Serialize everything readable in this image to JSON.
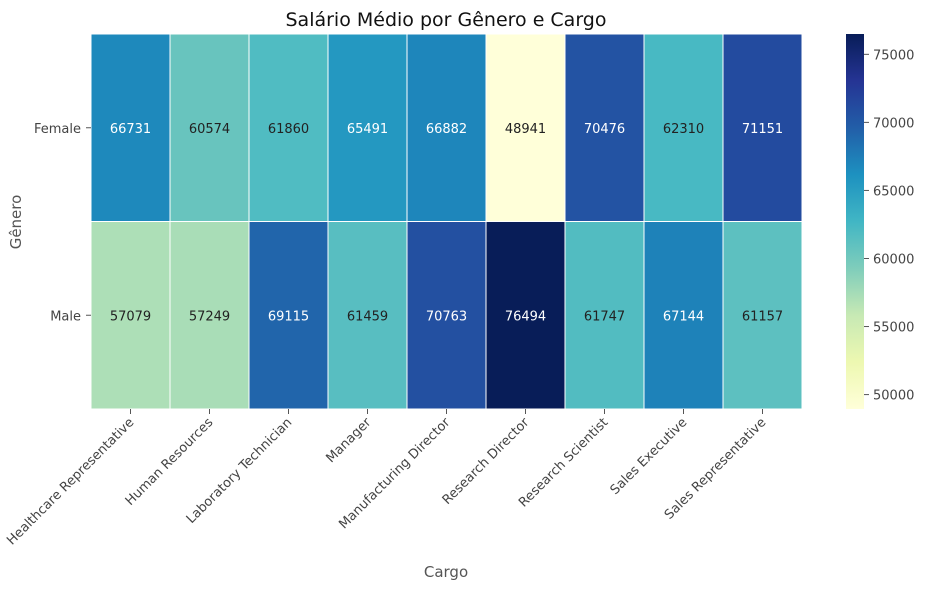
{
  "chart_data": {
    "type": "heatmap",
    "title": "Salário Médio por Gênero e Cargo",
    "xlabel": "Cargo",
    "ylabel": "Gênero",
    "x_categories": [
      "Healthcare Representative",
      "Human Resources",
      "Laboratory Technician",
      "Manager",
      "Manufacturing Director",
      "Research Director",
      "Research Scientist",
      "Sales Executive",
      "Sales Representative"
    ],
    "y_categories": [
      "Female",
      "Male"
    ],
    "values": [
      [
        66731,
        60574,
        61860,
        65491,
        66882,
        48941,
        70476,
        62310,
        71151
      ],
      [
        57079,
        57249,
        69115,
        61459,
        70763,
        76494,
        61747,
        67144,
        61157
      ]
    ],
    "colormap": "YlGnBu",
    "colorbar": {
      "min": 48941,
      "max": 76494,
      "ticks": [
        50000,
        55000,
        60000,
        65000,
        70000,
        75000
      ]
    },
    "grid": false
  }
}
